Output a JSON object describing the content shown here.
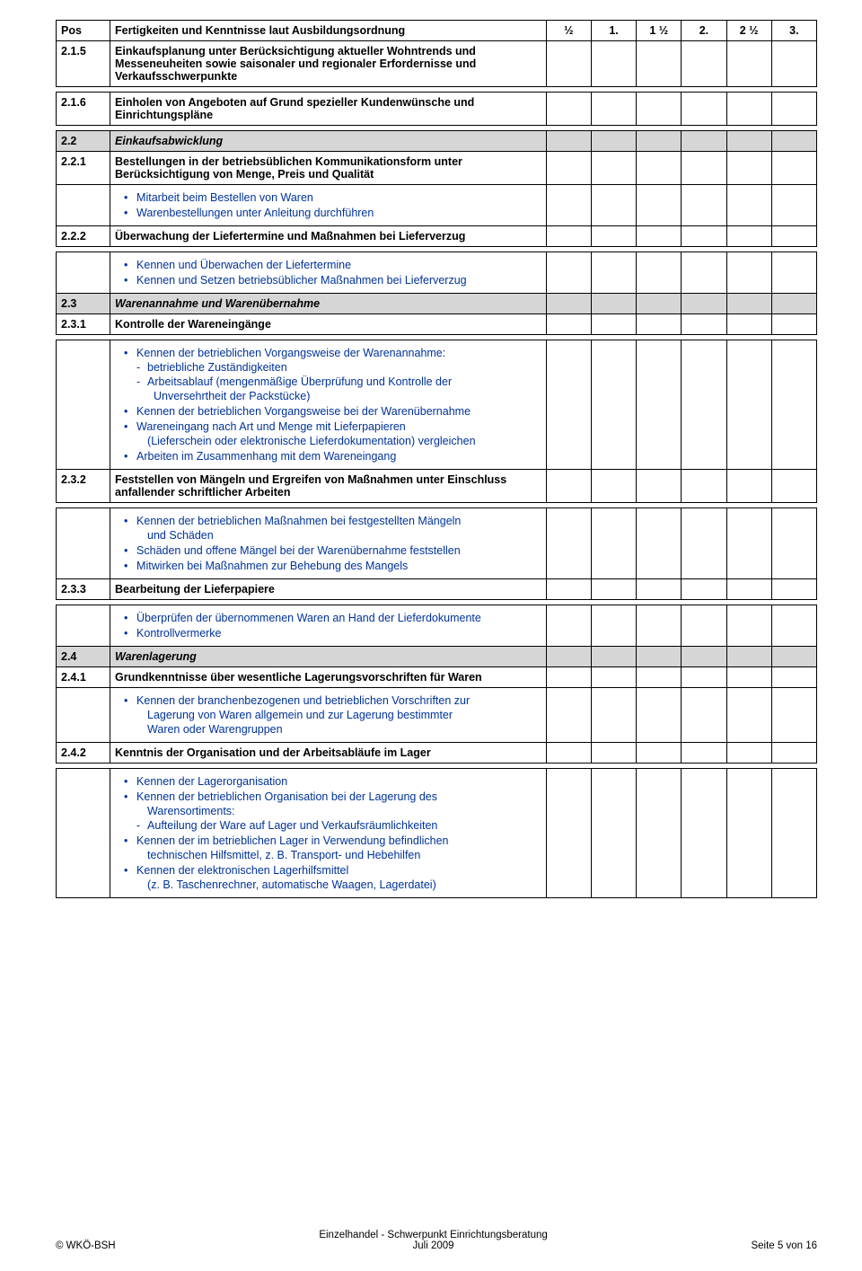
{
  "header": {
    "pos": "Pos",
    "desc": "Fertigkeiten und Kenntnisse laut Ausbildungsordnung",
    "cols": [
      "½",
      "1.",
      "1 ½",
      "2.",
      "2 ½",
      "3."
    ]
  },
  "rows": [
    {
      "type": "item",
      "pos": "2.1.5",
      "bold": true,
      "text": "Einkaufsplanung unter Berücksichtigung aktueller Wohntrends und Messeneuheiten sowie saisonaler und regionaler Erfordernisse und Verkaufsschwerpunkte"
    },
    {
      "type": "spacer"
    },
    {
      "type": "item",
      "pos": "2.1.6",
      "bold": true,
      "text": "Einholen von Angeboten auf Grund spezieller Kundenwünsche und Einrichtungspläne"
    },
    {
      "type": "spacer"
    },
    {
      "type": "section",
      "pos": "2.2",
      "text": "Einkaufsabwicklung"
    },
    {
      "type": "item",
      "pos": "2.2.1",
      "bold": true,
      "text": "Bestellungen in der betriebsüblichen Kommunikationsform unter Berücksichtigung von Menge, Preis und Qualität"
    },
    {
      "type": "detail",
      "bullets": [
        "Mitarbeit beim Bestellen von Waren",
        "Warenbestellungen unter Anleitung durchführen"
      ]
    },
    {
      "type": "item",
      "pos": "2.2.2",
      "bold": true,
      "text": "Überwachung der Liefertermine und Maßnahmen bei Lieferverzug"
    },
    {
      "type": "spacer"
    },
    {
      "type": "detail",
      "bullets": [
        "Kennen und Überwachen der Liefertermine",
        "Kennen und Setzen betriebsüblicher Maßnahmen bei Lieferverzug"
      ]
    },
    {
      "type": "section",
      "pos": "2.3",
      "text": "Warenannahme und Warenübernahme"
    },
    {
      "type": "item",
      "pos": "2.3.1",
      "bold": true,
      "text": "Kontrolle der Wareneingänge"
    },
    {
      "type": "spacer"
    },
    {
      "type": "detail",
      "bullets": [
        "Kennen der betrieblichen Vorgangsweise der Warenannahme:\n- betriebliche Zuständigkeiten\n- Arbeitsablauf (mengenmäßige Überprüfung und Kontrolle der\n  Unversehrtheit der Packstücke)",
        "Kennen der betrieblichen Vorgangsweise bei der Warenübernahme",
        "Wareneingang nach Art und Menge mit Lieferpapieren\n(Lieferschein oder elektronische Lieferdokumentation) vergleichen",
        "Arbeiten im Zusammenhang mit dem Wareneingang"
      ]
    },
    {
      "type": "item",
      "pos": "2.3.2",
      "bold": true,
      "text": "Feststellen von Mängeln und Ergreifen von Maßnahmen unter Einschluss anfallender schriftlicher Arbeiten"
    },
    {
      "type": "spacer"
    },
    {
      "type": "detail",
      "bullets": [
        "Kennen der betrieblichen Maßnahmen bei festgestellten Mängeln\nund Schäden",
        "Schäden und offene Mängel bei der Warenübernahme feststellen",
        "Mitwirken bei  Maßnahmen zur Behebung des Mangels"
      ]
    },
    {
      "type": "item",
      "pos": "2.3.3",
      "bold": true,
      "text": "Bearbeitung der Lieferpapiere"
    },
    {
      "type": "spacer"
    },
    {
      "type": "detail",
      "bullets": [
        "Überprüfen der übernommenen Waren an Hand der Lieferdokumente",
        "Kontrollvermerke"
      ]
    },
    {
      "type": "section",
      "pos": "2.4",
      "text": "Warenlagerung"
    },
    {
      "type": "item",
      "pos": "2.4.1",
      "bold": true,
      "text": "Grundkenntnisse über wesentliche Lagerungsvorschriften für Waren"
    },
    {
      "type": "detail",
      "bullets": [
        "Kennen der branchenbezogenen und betrieblichen Vorschriften zur\nLagerung von Waren allgemein und zur Lagerung bestimmter\nWaren oder Warengruppen"
      ]
    },
    {
      "type": "item",
      "pos": "2.4.2",
      "bold": true,
      "text": "Kenntnis der Organisation und der Arbeitsabläufe im Lager"
    },
    {
      "type": "spacer"
    },
    {
      "type": "detail",
      "bullets": [
        "Kennen der Lagerorganisation",
        "Kennen der betrieblichen Organisation bei der Lagerung des\nWarensortiments:\n-   Aufteilung der Ware auf Lager und Verkaufsräumlichkeiten",
        "Kennen der im betrieblichen Lager in Verwendung befindlichen\ntechnischen Hilfsmittel, z. B. Transport- und Hebehilfen",
        "Kennen der elektronischen Lagerhilfsmittel\n(z. B. Taschenrechner, automatische Waagen, Lagerdatei)"
      ]
    }
  ],
  "footer": {
    "left": "©  WKÖ-BSH",
    "centerTop": "Einzelhandel - Schwerpunkt Einrichtungsberatung",
    "centerBot": "Juli 2009",
    "right": "Seite 5 von 16"
  }
}
